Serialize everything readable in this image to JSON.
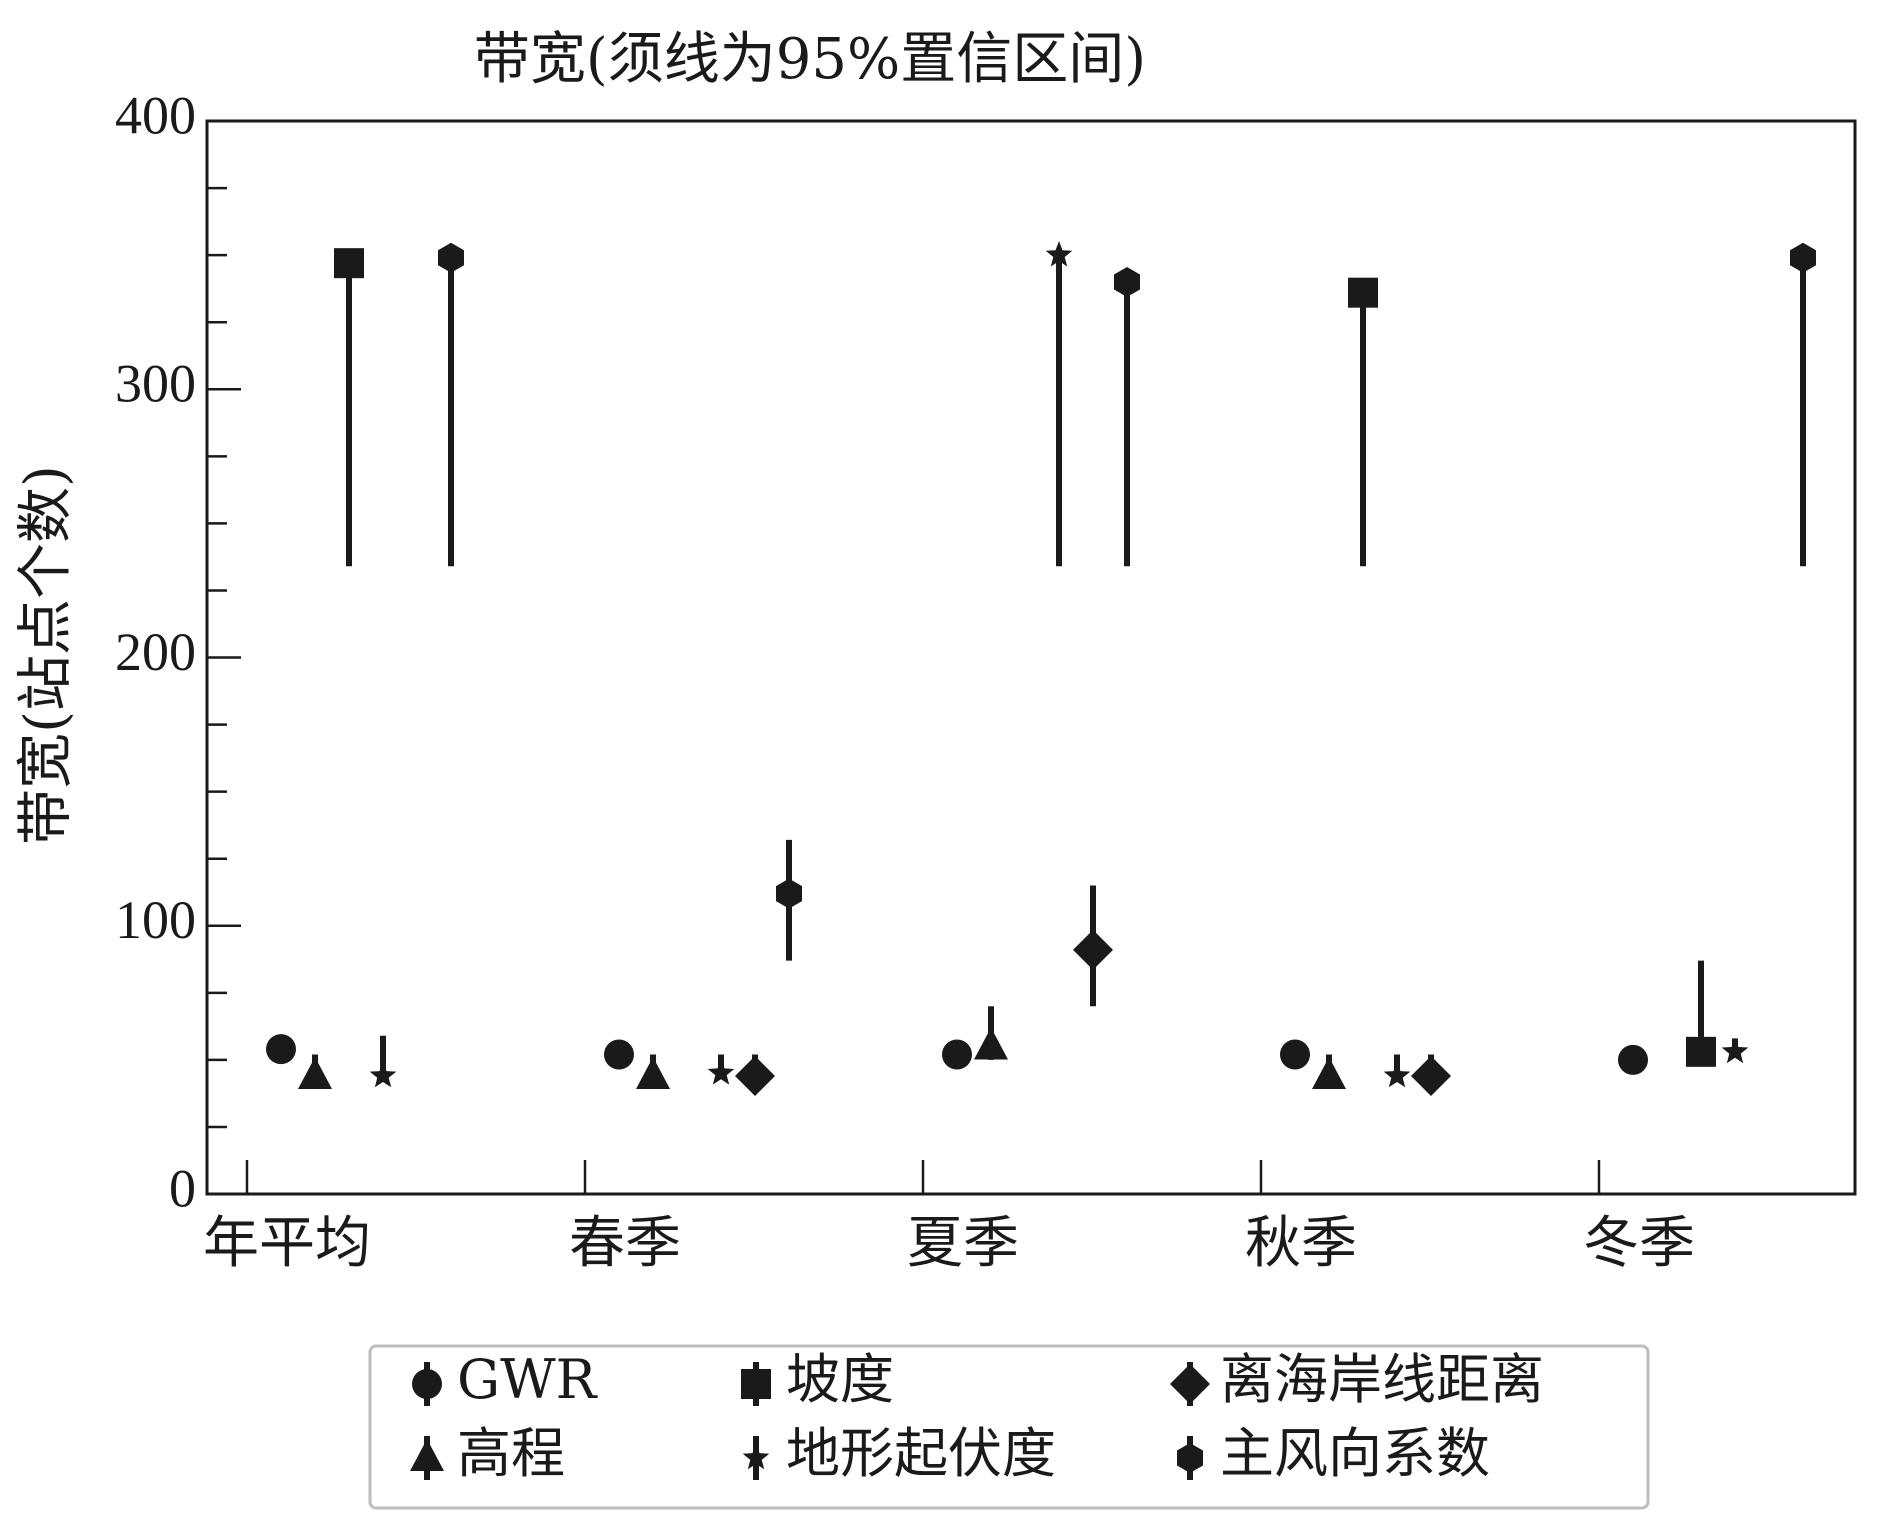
{
  "chart_data": {
    "type": "scatter",
    "title": "带宽(须线为95%置信区间)",
    "xlabel": "",
    "ylabel": "带宽(站点个数)",
    "ylim": [
      0,
      400
    ],
    "yticks": [
      0,
      100,
      200,
      300,
      400
    ],
    "categories": [
      "年平均",
      "春季",
      "夏季",
      "秋季",
      "冬季"
    ],
    "grid": false,
    "legend_position": "bottom",
    "colors": {
      "mark": "#1a1a1a",
      "frame": "#1a1a1a",
      "legend_border": "#bdbdbd"
    },
    "series": [
      {
        "name": "GWR",
        "marker": "circle",
        "points": [
          {
            "category": "年平均",
            "y": 54,
            "lo": null,
            "hi": null
          },
          {
            "category": "春季",
            "y": 52,
            "lo": null,
            "hi": null
          },
          {
            "category": "夏季",
            "y": 52,
            "lo": null,
            "hi": null
          },
          {
            "category": "秋季",
            "y": 52,
            "lo": null,
            "hi": null
          },
          {
            "category": "冬季",
            "y": 50,
            "lo": null,
            "hi": null
          }
        ]
      },
      {
        "name": "高程",
        "marker": "triangle",
        "points": [
          {
            "category": "年平均",
            "y": 44,
            "lo": null,
            "hi": 52
          },
          {
            "category": "春季",
            "y": 44,
            "lo": null,
            "hi": 52
          },
          {
            "category": "夏季",
            "y": 55,
            "lo": 50,
            "hi": 70
          },
          {
            "category": "秋季",
            "y": 44,
            "lo": null,
            "hi": 52
          }
        ]
      },
      {
        "name": "坡度",
        "marker": "square",
        "points": [
          {
            "category": "年平均",
            "y": 347,
            "lo": 234,
            "hi": null
          },
          {
            "category": "秋季",
            "y": 336,
            "lo": 234,
            "hi": null
          },
          {
            "category": "冬季",
            "y": 53,
            "lo": null,
            "hi": 87
          }
        ]
      },
      {
        "name": "地形起伏度",
        "marker": "star",
        "points": [
          {
            "category": "年平均",
            "y": 44,
            "lo": null,
            "hi": 59
          },
          {
            "category": "春季",
            "y": 45,
            "lo": null,
            "hi": 52
          },
          {
            "category": "夏季",
            "y": 350,
            "lo": 234,
            "hi": null
          },
          {
            "category": "秋季",
            "y": 44,
            "lo": null,
            "hi": 52
          },
          {
            "category": "冬季",
            "y": 53,
            "lo": null,
            "hi": 58
          }
        ]
      },
      {
        "name": "离海岸线距离",
        "marker": "diamond",
        "points": [
          {
            "category": "春季",
            "y": 44,
            "lo": null,
            "hi": 52
          },
          {
            "category": "夏季",
            "y": 91,
            "lo": 70,
            "hi": 115
          },
          {
            "category": "秋季",
            "y": 44,
            "lo": null,
            "hi": 52
          }
        ]
      },
      {
        "name": "主风向系数",
        "marker": "hexagon",
        "points": [
          {
            "category": "年平均",
            "y": 349,
            "lo": 234,
            "hi": null
          },
          {
            "category": "春季",
            "y": 112,
            "lo": 87,
            "hi": 132
          },
          {
            "category": "夏季",
            "y": 340,
            "lo": 234,
            "hi": null
          },
          {
            "category": "冬季",
            "y": 349,
            "lo": 234,
            "hi": null
          }
        ]
      }
    ]
  }
}
